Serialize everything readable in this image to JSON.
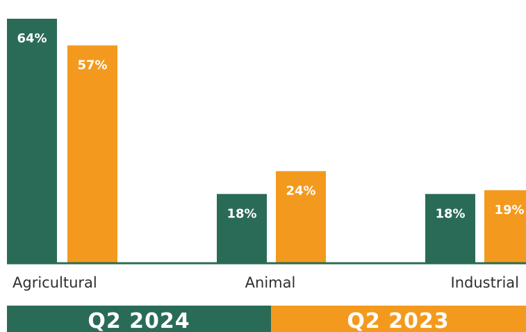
{
  "chart_data": {
    "type": "bar",
    "categories": [
      "Agricultural",
      "Animal",
      "Industrial"
    ],
    "series": [
      {
        "name": "Q2 2024",
        "values": [
          64,
          18,
          18
        ],
        "labels": [
          "64%",
          "18%",
          "18%"
        ],
        "color": "#2a6b57"
      },
      {
        "name": "Q2 2023",
        "values": [
          57,
          24,
          19
        ],
        "labels": [
          "57%",
          "24%",
          "19%"
        ],
        "color": "#f39a1e"
      }
    ],
    "ylim": [
      0,
      66
    ],
    "grid": false,
    "legend": "bottom",
    "baseline_color": "#2a6b57"
  }
}
